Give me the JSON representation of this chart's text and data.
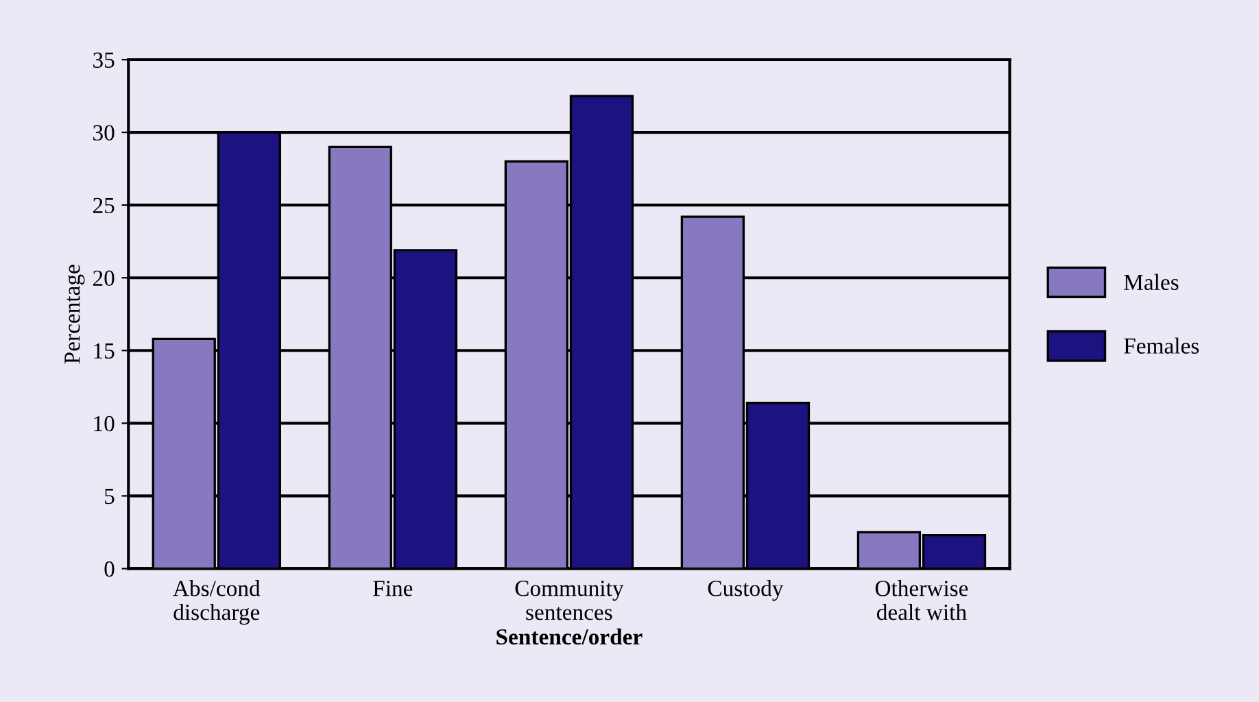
{
  "chart_data": {
    "type": "bar",
    "xlabel": "Sentence/order",
    "ylabel": "Percentage",
    "categories": [
      "Abs/cond\ndischarge",
      "Fine",
      "Community\nsentences",
      "Custody",
      "Otherwise\ndealt with"
    ],
    "series": [
      {
        "name": "Males",
        "color": "#8878c0",
        "values": [
          15.8,
          29.0,
          28.0,
          24.2,
          2.5
        ]
      },
      {
        "name": "Females",
        "color": "#1c1380",
        "values": [
          30.0,
          21.9,
          32.5,
          11.4,
          2.3
        ]
      }
    ],
    "ylim": [
      0,
      35
    ],
    "yticks": [
      0,
      5,
      10,
      15,
      20,
      25,
      30,
      35
    ],
    "grid": "y",
    "legend": "right"
  }
}
